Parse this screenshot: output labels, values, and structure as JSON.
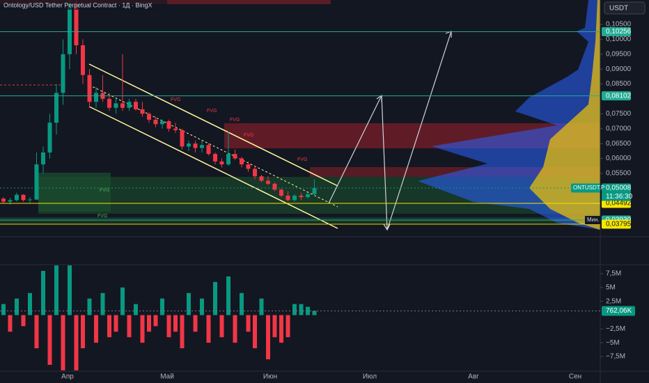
{
  "header": {
    "title": "Ontology/USD Tether Perpetual Contract · 1Д · BingX"
  },
  "currency": "USDT",
  "price_pane": {
    "ylim": [
      0.0337,
      0.1132
    ],
    "yticks": [
      {
        "value": 0.105,
        "label": "0,10500"
      },
      {
        "value": 0.1,
        "label": "0,10000"
      },
      {
        "value": 0.095,
        "label": "0,09500"
      },
      {
        "value": 0.09,
        "label": "0,09000"
      },
      {
        "value": 0.085,
        "label": "0,08500"
      },
      {
        "value": 0.075,
        "label": "0,07500"
      },
      {
        "value": 0.07,
        "label": "0,07000"
      },
      {
        "value": 0.065,
        "label": "0,06500"
      },
      {
        "value": 0.06,
        "label": "0,06000"
      },
      {
        "value": 0.055,
        "label": "0,05500"
      }
    ],
    "price_tags": [
      {
        "value": 0.10256,
        "label": "0,10256",
        "color": "#22ab94"
      },
      {
        "value": 0.08102,
        "label": "0,08102",
        "color": "#22ab94"
      },
      {
        "value": 0.05008,
        "label": "0,05008",
        "color": "#089981"
      },
      {
        "value": 0.04492,
        "label": "0,04492",
        "color": "#f7e600"
      },
      {
        "value": 0.0393,
        "label": "0,03930",
        "color": "#22ab94"
      },
      {
        "value": 0.03795,
        "label": "0,03795",
        "color": "#f7e600"
      }
    ],
    "symbol": "ONTUSDT.P",
    "countdown": "11:36:30",
    "min_label": "Мин.",
    "fvg_labels": [
      "FVG",
      "FVG",
      "FVG",
      "FVG",
      "FVG",
      "FVG",
      "FVG"
    ],
    "candles": [
      [
        0.0465,
        0.047,
        0.045,
        0.0455
      ],
      [
        0.0455,
        0.0468,
        0.0445,
        0.046
      ],
      [
        0.046,
        0.0485,
        0.0455,
        0.0478
      ],
      [
        0.0478,
        0.048,
        0.0455,
        0.046
      ],
      [
        0.046,
        0.047,
        0.045,
        0.0462
      ],
      [
        0.0462,
        0.062,
        0.046,
        0.058
      ],
      [
        0.058,
        0.064,
        0.055,
        0.062
      ],
      [
        0.062,
        0.075,
        0.06,
        0.072
      ],
      [
        0.072,
        0.085,
        0.068,
        0.082
      ],
      [
        0.082,
        0.1,
        0.078,
        0.095
      ],
      [
        0.095,
        0.115,
        0.09,
        0.112
      ],
      [
        0.112,
        0.116,
        0.095,
        0.098
      ],
      [
        0.098,
        0.1,
        0.085,
        0.088
      ],
      [
        0.088,
        0.09,
        0.077,
        0.079
      ],
      [
        0.079,
        0.084,
        0.077,
        0.082
      ],
      [
        0.082,
        0.088,
        0.079,
        0.08
      ],
      [
        0.08,
        0.082,
        0.076,
        0.077
      ],
      [
        0.077,
        0.08,
        0.075,
        0.0785
      ],
      [
        0.0785,
        0.095,
        0.076,
        0.077
      ],
      [
        0.077,
        0.08,
        0.076,
        0.079
      ],
      [
        0.079,
        0.08,
        0.076,
        0.0765
      ],
      [
        0.0765,
        0.079,
        0.074,
        0.075
      ],
      [
        0.075,
        0.0755,
        0.072,
        0.073
      ],
      [
        0.073,
        0.074,
        0.0705,
        0.0715
      ],
      [
        0.0715,
        0.073,
        0.07,
        0.0725
      ],
      [
        0.0725,
        0.073,
        0.069,
        0.07
      ],
      [
        0.07,
        0.072,
        0.0685,
        0.0695
      ],
      [
        0.0695,
        0.07,
        0.063,
        0.064
      ],
      [
        0.064,
        0.066,
        0.0625,
        0.065
      ],
      [
        0.065,
        0.066,
        0.062,
        0.0635
      ],
      [
        0.0635,
        0.066,
        0.062,
        0.0645
      ],
      [
        0.0645,
        0.065,
        0.061,
        0.0615
      ],
      [
        0.0615,
        0.062,
        0.058,
        0.059
      ],
      [
        0.059,
        0.06,
        0.057,
        0.058
      ],
      [
        0.058,
        0.069,
        0.0575,
        0.0615
      ],
      [
        0.0615,
        0.063,
        0.0595,
        0.06
      ],
      [
        0.06,
        0.0605,
        0.057,
        0.058
      ],
      [
        0.058,
        0.059,
        0.0555,
        0.0565
      ],
      [
        0.0565,
        0.0575,
        0.053,
        0.054
      ],
      [
        0.054,
        0.0545,
        0.052,
        0.0525
      ],
      [
        0.0525,
        0.054,
        0.051,
        0.0515
      ],
      [
        0.0515,
        0.052,
        0.049,
        0.0495
      ],
      [
        0.0495,
        0.05,
        0.047,
        0.0475
      ],
      [
        0.0475,
        0.049,
        0.0455,
        0.046
      ],
      [
        0.046,
        0.048,
        0.0455,
        0.0475
      ],
      [
        0.0475,
        0.0485,
        0.046,
        0.047
      ],
      [
        0.047,
        0.0485,
        0.0465,
        0.048
      ],
      [
        0.048,
        0.053,
        0.0475,
        0.05008
      ]
    ]
  },
  "indicator_pane": {
    "ylim": [
      -10.4,
      9.14
    ],
    "yticks": [
      {
        "value": 7.5,
        "label": "7,5M"
      },
      {
        "value": 5,
        "label": "5M"
      },
      {
        "value": 2.5,
        "label": "2,5M"
      },
      {
        "value": -2.5,
        "label": "−2,5M"
      },
      {
        "value": -5,
        "label": "−5M"
      },
      {
        "value": -7.5,
        "label": "−7,5M"
      }
    ],
    "last_tag": {
      "value": 0.76206,
      "label": "762,06K"
    },
    "values": [
      2,
      -3,
      3,
      -2,
      4,
      -6,
      8,
      -9,
      9,
      -10,
      9,
      -10,
      -6,
      3,
      -5,
      4,
      -4,
      -3,
      5,
      -4,
      2,
      -5,
      -3,
      -2,
      3,
      -4,
      -3,
      -6,
      4,
      -3,
      3,
      -5,
      6,
      -4,
      7,
      -5,
      4,
      -3,
      -6,
      3,
      -8,
      -4,
      -5,
      -4,
      2,
      2,
      1.5,
      0.76206
    ]
  },
  "time_axis": [
    "Апр",
    "Май",
    "Июн",
    "Июл",
    "Авг",
    "Сен"
  ]
}
